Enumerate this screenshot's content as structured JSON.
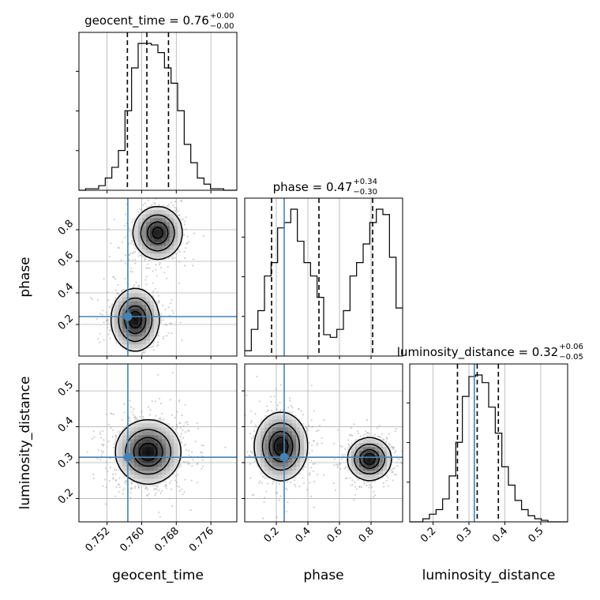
{
  "chart_data": {
    "type": "corner",
    "params": [
      {
        "key": "geocent_time",
        "label": "geocent_time",
        "range": [
          0.7455,
          0.782
        ],
        "ticks": [
          "0.752",
          "0.760",
          "0.768",
          "0.776"
        ],
        "tick_values": [
          0.752,
          0.76,
          0.768,
          0.776
        ]
      },
      {
        "key": "phase",
        "label": "phase",
        "range": [
          0.0,
          1.0
        ],
        "ticks": [
          "0.2",
          "0.4",
          "0.6",
          "0.8"
        ],
        "tick_values": [
          0.2,
          0.4,
          0.6,
          0.8
        ]
      },
      {
        "key": "luminosity_distance",
        "label": "luminosity_distance",
        "range": [
          0.135,
          0.575
        ],
        "ticks": [
          "0.2",
          "0.3",
          "0.4",
          "0.5"
        ],
        "tick_values": [
          0.2,
          0.3,
          0.4,
          0.5
        ]
      }
    ],
    "titles": [
      {
        "prefix": "geocent_time = 0.76",
        "plus": "+0.00",
        "minus": "−0.00"
      },
      {
        "prefix": "phase = 0.47",
        "plus": "+0.34",
        "minus": "−0.30"
      },
      {
        "prefix": "luminosity_distance = 0.32",
        "plus": "+0.06",
        "minus": "−0.05"
      }
    ],
    "truths": {
      "geocent_time": 0.7568,
      "phase": 0.25,
      "luminosity_distance": 0.315
    },
    "truth_color": "#4682b4",
    "quantiles": {
      "geocent_time": [
        0.7567,
        0.7612,
        0.7662
      ],
      "phase": [
        0.17,
        0.47,
        0.81
      ],
      "luminosity_distance": [
        0.268,
        0.323,
        0.382
      ]
    },
    "histograms": {
      "geocent_time": [
        0,
        1,
        1,
        3,
        8,
        15,
        26,
        52,
        80,
        96,
        96,
        95,
        90,
        80,
        70,
        52,
        30,
        18,
        8,
        4,
        1,
        1,
        0,
        0
      ],
      "phase": [
        2,
        10,
        17,
        30,
        35,
        48,
        50,
        55,
        43,
        35,
        30,
        22,
        8,
        7,
        10,
        17,
        30,
        35,
        42,
        50,
        55,
        53,
        37,
        18
      ],
      "luminosity_distance": [
        0,
        0,
        2,
        5,
        8,
        15,
        30,
        52,
        82,
        95,
        96,
        91,
        75,
        58,
        36,
        24,
        14,
        8,
        4,
        2,
        1,
        0,
        0,
        0
      ]
    },
    "blobs": {
      "phase_vs_geocent_time": [
        {
          "cx": 0.7637,
          "cy": 0.78,
          "sx": 0.0029,
          "sy": 0.085,
          "rot": 0,
          "w": 1
        },
        {
          "cx": 0.7585,
          "cy": 0.23,
          "sx": 0.0028,
          "sy": 0.1,
          "rot": 0,
          "w": 1.05
        }
      ],
      "luminosity_distance_vs_geocent_time": [
        {
          "cx": 0.7615,
          "cy": 0.33,
          "sx": 0.0038,
          "sy": 0.045,
          "rot": -0.25,
          "w": 1
        }
      ],
      "luminosity_distance_vs_phase": [
        {
          "cx": 0.23,
          "cy": 0.345,
          "sx": 0.085,
          "sy": 0.048,
          "rot": 0,
          "w": 1
        },
        {
          "cx": 0.79,
          "cy": 0.31,
          "sx": 0.07,
          "sy": 0.03,
          "rot": 0,
          "w": 1
        }
      ]
    }
  }
}
